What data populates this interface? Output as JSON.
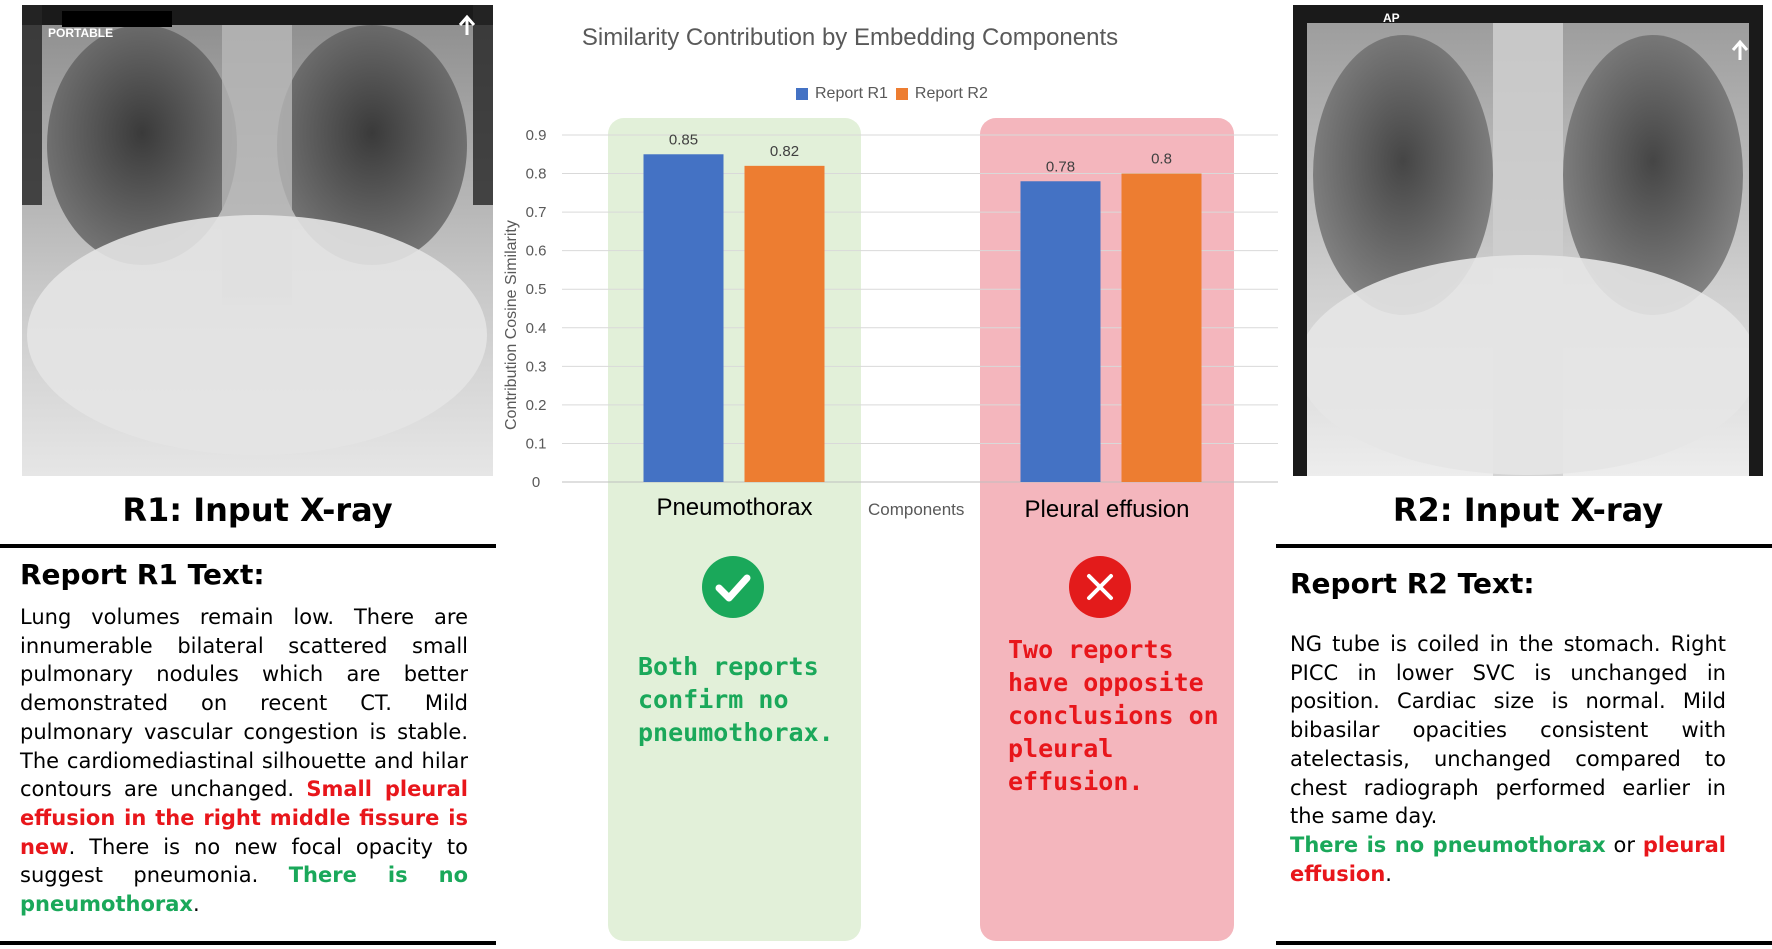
{
  "left": {
    "marker": "PORTABLE",
    "title": "R1: Input X-ray",
    "report_heading": "Report R1 Text:",
    "report_plain_1": "Lung volumes remain low. There are innumerable bilateral scattered small pulmonary nodules which are better demonstrated on recent CT. Mild pulmonary vascular congestion is stable. The cardiomediastinal silhouette and hilar contours are unchanged. ",
    "report_red": "Small pleural effusion in the right middle fissure is new",
    "report_plain_2": ". There is no new focal opacity to suggest pneumonia. ",
    "report_green": "There is no pneumothorax",
    "report_plain_3": "."
  },
  "right": {
    "marker": "AP",
    "title": "R2: Input X-ray",
    "report_heading": "Report R2 Text:",
    "report_plain_1": "NG tube is coiled in the stomach. Right PICC in lower SVC is unchanged in position. Cardiac size is normal. Mild bibasilar opacities consistent with atelectasis, unchanged compared to chest radiograph performed earlier in the same day.",
    "report_green": "There is no pneumothorax",
    "report_plain_2": " or ",
    "report_red": "pleural effusion",
    "report_plain_3": "."
  },
  "chart_data": {
    "type": "bar",
    "title": "Similarity Contribution by Embedding Components",
    "xlabel": "Components",
    "ylabel": "Contribution Cosine Similarity",
    "ylim": [
      0,
      0.9
    ],
    "yticks": [
      "0",
      "0.1",
      "0.2",
      "0.3",
      "0.4",
      "0.5",
      "0.6",
      "0.7",
      "0.8",
      "0.9"
    ],
    "categories": [
      "Pneumothorax",
      "Pleural effusion"
    ],
    "series": [
      {
        "name": "Report R1",
        "values": [
          0.85,
          0.78
        ],
        "value_labels": [
          "0.85",
          "0.78"
        ],
        "color": "#4472c4"
      },
      {
        "name": "Report R2",
        "values": [
          0.82,
          0.8
        ],
        "value_labels": [
          "0.82",
          "0.8"
        ],
        "color": "#ed7d31"
      }
    ],
    "legend_position": "top",
    "grid": true
  },
  "verdicts": {
    "pneumothorax": {
      "text": "Both reports confirm no pneumothorax.",
      "icon": "check-icon",
      "color": "#1aa85a",
      "panel_color": "#e2f0d9"
    },
    "effusion": {
      "text": "Two reports have opposite conclusions on pleural effusion.",
      "icon": "cross-icon",
      "color": "#e8161b",
      "panel_color": "#f4b6bd"
    }
  }
}
